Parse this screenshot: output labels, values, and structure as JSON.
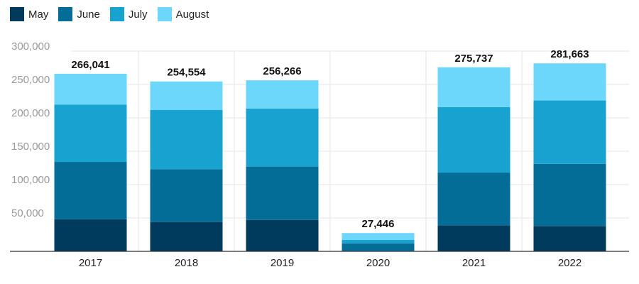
{
  "colors": {
    "May": "#003a5c",
    "June": "#036d97",
    "July": "#17a2cf",
    "August": "#6dd6fb",
    "grid": "#e6e6e6",
    "axis": "#333333"
  },
  "chart_data": {
    "type": "bar",
    "stacked": true,
    "categories": [
      "2017",
      "2018",
      "2019",
      "2020",
      "2021",
      "2022"
    ],
    "series": [
      {
        "name": "May",
        "values": [
          48000,
          44000,
          47000,
          0,
          39000,
          38000
        ]
      },
      {
        "name": "June",
        "values": [
          86000,
          79000,
          80000,
          12000,
          79000,
          93000
        ]
      },
      {
        "name": "July",
        "values": [
          86000,
          89000,
          87000,
          5000,
          98000,
          95000
        ]
      },
      {
        "name": "August",
        "values": [
          46041,
          42554,
          42266,
          10446,
          59737,
          55663
        ]
      }
    ],
    "totals": [
      "266,041",
      "254,554",
      "256,266",
      "27,446",
      "275,737",
      "281,663"
    ],
    "yticks": [
      "50,000",
      "100,000",
      "150,000",
      "200,000",
      "250,000",
      "300,000"
    ],
    "ytick_values": [
      50000,
      100000,
      150000,
      200000,
      250000,
      300000
    ],
    "ylim": [
      0,
      300000
    ],
    "legend": "top-left",
    "grid": true
  }
}
